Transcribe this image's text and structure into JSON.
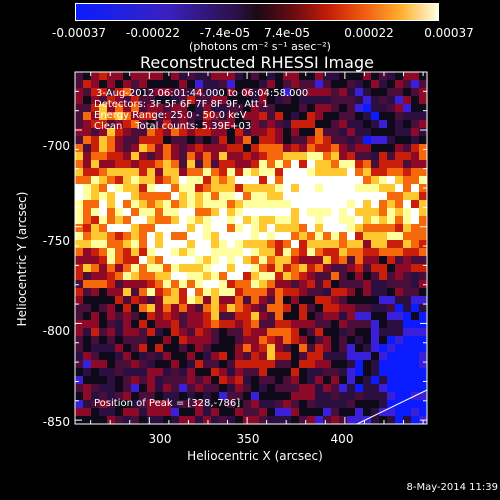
{
  "colorbar": {
    "tick_labels": [
      "-0.00037",
      "-0.00022",
      "-7.4e-05",
      "7.4e-05",
      "0.00022",
      "0.00037"
    ],
    "unit_label": "(photons cm⁻² s⁻¹ asec⁻²)",
    "range": [
      -0.00037,
      0.00037
    ]
  },
  "chart_data": {
    "type": "heatmap",
    "title": "Reconstructed RHESSI Image",
    "xlabel": "Heliocentric X (arcsec)",
    "ylabel": "Heliocentric Y (arcsec)",
    "xlim": [
      262,
      442
    ],
    "ylim": [
      -852,
      -670
    ],
    "x_ticks": [
      "300",
      "350",
      "400"
    ],
    "y_ticks": [
      "-700",
      "-750",
      "-800",
      "-850"
    ],
    "annotations": [
      "3-Aug-2012 06:01:44.000 to 06:04:58.000",
      "Detectors: 3F 5F 6F 7F 8F 9F, Att 1",
      "Energy Range: 25.0 - 50.0 keV",
      "Clean    Total counts: 5.39E+03"
    ],
    "peak_label": "Position of Peak = [328,-786]",
    "peak": [
      328,
      -786
    ],
    "colormap": [
      "#0a1cff",
      "#3a20d8",
      "#2a0f40",
      "#0e0a1a",
      "#4a0e3a",
      "#8c0a28",
      "#c81e0a",
      "#f5680c",
      "#ffc830",
      "#ffffa0",
      "#ffffff"
    ]
  },
  "footer": {
    "date": "8-May-2014 11:39"
  }
}
